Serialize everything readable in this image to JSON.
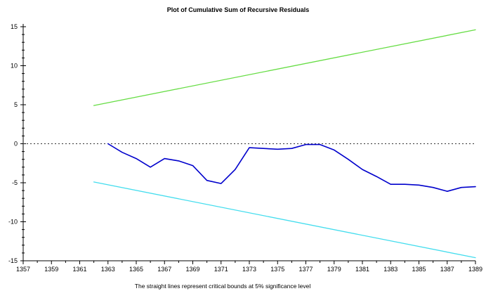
{
  "chart_data": {
    "type": "line",
    "title": "Plot of Cumulative Sum of Recursive Residuals",
    "caption": "The straight lines represent critical bounds at 5% significance level",
    "xlabel": "",
    "ylabel": "",
    "xlim": [
      1357,
      1389
    ],
    "ylim": [
      -15,
      15
    ],
    "grid": false,
    "x_ticks": [
      1357,
      1359,
      1361,
      1363,
      1365,
      1367,
      1369,
      1371,
      1373,
      1375,
      1377,
      1379,
      1381,
      1383,
      1385,
      1387,
      1389
    ],
    "y_ticks": [
      -15,
      -10,
      -5,
      0,
      5,
      10,
      15
    ],
    "zero_reference": {
      "y": 0,
      "style": "dotted",
      "color": "#333333"
    },
    "series": [
      {
        "kind": "cusum",
        "color": "#0000cc",
        "x": [
          1363,
          1364,
          1365,
          1366,
          1367,
          1368,
          1369,
          1370,
          1371,
          1372,
          1373,
          1374,
          1375,
          1376,
          1377,
          1378,
          1379,
          1380,
          1381,
          1382,
          1383,
          1384,
          1385,
          1386,
          1387,
          1388,
          1389
        ],
        "y": [
          0.0,
          -1.1,
          -1.9,
          -3.0,
          -1.9,
          -2.2,
          -2.8,
          -4.7,
          -5.1,
          -3.3,
          -0.5,
          -0.6,
          -0.7,
          -0.6,
          -0.1,
          -0.1,
          -0.8,
          -2.0,
          -3.3,
          -4.2,
          -5.2,
          -5.2,
          -5.3,
          -5.6,
          -6.1,
          -5.6,
          -5.5
        ]
      },
      {
        "kind": "upper-bound",
        "color": "#66dd44",
        "x": [
          1362,
          1389
        ],
        "y": [
          4.9,
          14.6
        ]
      },
      {
        "kind": "lower-bound",
        "color": "#44ddee",
        "x": [
          1362,
          1389
        ],
        "y": [
          -4.9,
          -14.6
        ]
      }
    ]
  }
}
